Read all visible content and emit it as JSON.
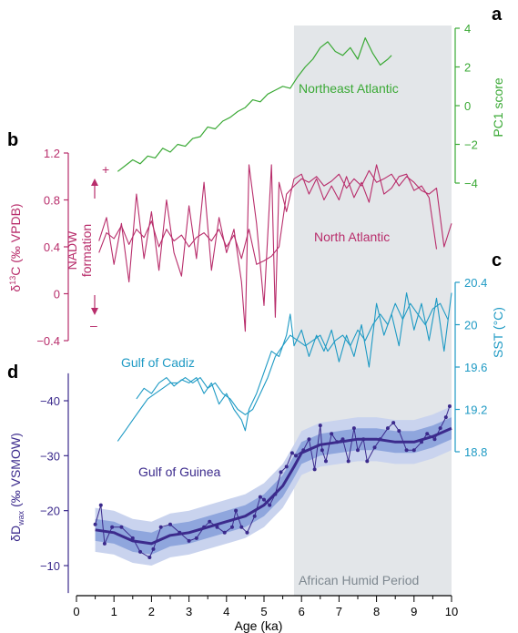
{
  "chart_data": [
    {
      "type": "line",
      "panel_label": "a",
      "series_label": "Northeast Atlantic",
      "ylabel": "PC1 score",
      "ylim": [
        -4,
        4
      ],
      "y_ticks": [
        -4,
        -2,
        0,
        2,
        4
      ],
      "color": "#3aa935",
      "x": [
        1.1,
        1.3,
        1.5,
        1.7,
        1.9,
        2.1,
        2.3,
        2.5,
        2.7,
        2.9,
        3.1,
        3.3,
        3.5,
        3.7,
        3.9,
        4.1,
        4.3,
        4.5,
        4.7,
        4.9,
        5.1,
        5.3,
        5.5,
        5.7,
        5.9,
        6.1,
        6.3,
        6.5,
        6.7,
        6.9,
        7.1,
        7.3,
        7.5,
        7.7,
        7.9,
        8.1,
        8.3,
        8.4
      ],
      "y": [
        -3.4,
        -3.1,
        -2.8,
        -3.0,
        -2.6,
        -2.7,
        -2.2,
        -2.4,
        -2.0,
        -2.1,
        -1.7,
        -1.6,
        -1.1,
        -1.2,
        -0.8,
        -0.6,
        -0.3,
        -0.1,
        0.3,
        0.2,
        0.6,
        0.8,
        1.0,
        0.9,
        1.5,
        2.0,
        2.4,
        3.0,
        3.3,
        2.8,
        2.6,
        3.0,
        2.4,
        3.5,
        2.7,
        2.1,
        2.4,
        2.6
      ]
    },
    {
      "type": "line",
      "panel_label": "b",
      "series_label": "North Atlantic",
      "ylabel": "δ13C (‰ VPDB)",
      "ylim": [
        -0.4,
        1.2
      ],
      "y_ticks": [
        -0.4,
        0,
        0.4,
        0.8,
        1.2
      ],
      "annotation": "NADW formation",
      "arrow_up": "+",
      "arrow_down": "–",
      "color": "#b82d6b",
      "series": [
        {
          "x": [
            0.6,
            0.8,
            1.0,
            1.2,
            1.4,
            1.6,
            1.8,
            2.0,
            2.2,
            2.4,
            2.6,
            2.8,
            3.0,
            3.2,
            3.4,
            3.6,
            3.8,
            4.0,
            4.2,
            4.4,
            4.6,
            4.8,
            5.0,
            5.2,
            5.4,
            5.6,
            5.8,
            6.0,
            6.2,
            6.4,
            6.6,
            6.8,
            7.0,
            7.2,
            7.4,
            7.6,
            7.8,
            8.0,
            8.2,
            8.4,
            8.6,
            8.8,
            9.0,
            9.2,
            9.4,
            9.6,
            9.8,
            10.0
          ],
          "y": [
            0.35,
            0.52,
            0.47,
            0.58,
            0.42,
            0.55,
            0.48,
            0.62,
            0.4,
            0.55,
            0.45,
            0.5,
            0.4,
            0.48,
            0.52,
            0.45,
            0.55,
            0.4,
            0.5,
            0.3,
            0.55,
            0.25,
            0.28,
            0.32,
            0.4,
            0.85,
            0.92,
            0.98,
            0.95,
            1.0,
            0.92,
            0.96,
            1.02,
            0.9,
            0.98,
            0.92,
            1.05,
            0.95,
            0.98,
            1.02,
            0.92,
            1.0,
            0.95,
            0.88,
            0.85,
            0.9,
            0.4,
            0.6
          ]
        },
        {
          "x": [
            0.6,
            0.8,
            1.0,
            1.2,
            1.4,
            1.6,
            1.8,
            2.0,
            2.2,
            2.4,
            2.6,
            2.8,
            3.0,
            3.2,
            3.4,
            3.6,
            3.8,
            4.0,
            4.2,
            4.4,
            4.5,
            4.6,
            4.8,
            5.0,
            5.2,
            5.3,
            5.4,
            5.6,
            5.8,
            6.0,
            6.2,
            6.4,
            6.6,
            6.8,
            7.0,
            7.2,
            7.4,
            7.6,
            7.8,
            8.0,
            8.2,
            8.4,
            8.6,
            8.8,
            9.0,
            9.2,
            9.4,
            9.6
          ],
          "y": [
            0.45,
            0.65,
            0.25,
            0.6,
            0.1,
            0.85,
            0.3,
            0.7,
            0.2,
            0.8,
            0.35,
            0.15,
            0.75,
            0.3,
            0.95,
            0.2,
            0.65,
            0.35,
            0.55,
            0.1,
            -0.32,
            1.1,
            0.6,
            -0.1,
            1.1,
            -0.2,
            0.95,
            0.7,
            0.98,
            1.02,
            0.85,
            0.98,
            0.8,
            0.92,
            0.8,
            1.0,
            0.82,
            0.95,
            0.78,
            1.1,
            0.85,
            0.9,
            1.0,
            1.02,
            0.88,
            0.92,
            0.82,
            0.38
          ]
        }
      ]
    },
    {
      "type": "line",
      "panel_label": "c",
      "series_label": "Gulf of Cadiz",
      "ylabel": "SST (°C)",
      "ylim": [
        18.8,
        20.4
      ],
      "y_ticks": [
        18.8,
        19.2,
        19.6,
        20,
        20.4
      ],
      "color": "#1e9ac4",
      "series": [
        {
          "x": [
            1.1,
            1.3,
            1.5,
            1.7,
            1.9,
            2.1,
            2.3,
            2.5,
            2.7,
            2.9,
            3.1,
            3.3,
            3.5,
            3.7,
            3.9,
            4.1,
            4.3,
            4.5,
            4.7,
            4.9,
            5.1,
            5.3,
            5.5,
            5.7,
            5.9,
            6.1,
            6.3,
            6.5,
            6.7,
            6.9,
            7.1,
            7.3,
            7.5,
            7.7,
            7.9,
            8.1,
            8.3,
            8.5,
            8.7,
            8.9,
            9.1,
            9.3,
            9.5,
            9.7,
            9.9
          ],
          "y": [
            18.9,
            19.0,
            19.1,
            19.2,
            19.3,
            19.35,
            19.4,
            19.45,
            19.45,
            19.5,
            19.45,
            19.5,
            19.4,
            19.45,
            19.35,
            19.3,
            19.2,
            19.15,
            19.2,
            19.35,
            19.5,
            19.7,
            19.8,
            19.9,
            19.85,
            19.8,
            19.85,
            19.9,
            19.75,
            19.85,
            19.9,
            19.8,
            19.95,
            19.85,
            20.0,
            20.1,
            20.0,
            20.2,
            20.05,
            20.2,
            20.1,
            20.0,
            20.15,
            20.2,
            20.05
          ]
        },
        {
          "x": [
            1.6,
            1.8,
            2.0,
            2.2,
            2.4,
            2.6,
            2.8,
            3.0,
            3.2,
            3.4,
            3.6,
            3.8,
            4.0,
            4.2,
            4.4,
            4.5,
            4.6,
            4.8,
            5.0,
            5.2,
            5.4,
            5.6,
            5.7,
            5.8,
            6.0,
            6.2,
            6.4,
            6.6,
            6.8,
            7.0,
            7.2,
            7.4,
            7.6,
            7.8,
            8.0,
            8.2,
            8.4,
            8.6,
            8.8,
            9.0,
            9.2,
            9.4,
            9.6,
            9.8,
            10.0
          ],
          "y": [
            19.3,
            19.4,
            19.35,
            19.45,
            19.5,
            19.42,
            19.48,
            19.45,
            19.5,
            19.35,
            19.45,
            19.25,
            19.35,
            19.2,
            19.1,
            19.0,
            19.2,
            19.35,
            19.55,
            19.75,
            19.7,
            19.9,
            20.1,
            19.8,
            19.95,
            19.7,
            19.9,
            19.75,
            19.95,
            19.65,
            19.9,
            19.7,
            20.0,
            19.6,
            20.2,
            19.9,
            20.1,
            19.8,
            20.3,
            19.95,
            20.2,
            19.85,
            20.25,
            19.75,
            20.3
          ]
        }
      ]
    },
    {
      "type": "line",
      "panel_label": "d",
      "series_label": "Gulf of Guinea",
      "ylabel": "δDwax (‰ VSMOW)",
      "ylim": [
        -45,
        -5
      ],
      "y_reversed": true,
      "y_ticks": [
        -40,
        -30,
        -20,
        -10
      ],
      "xlabel": "Age (ka)",
      "xlim": [
        0,
        10
      ],
      "x_ticks": [
        0,
        1,
        2,
        3,
        4,
        5,
        6,
        7,
        8,
        9,
        10
      ],
      "shaded_period_label": "African Humid Period",
      "shaded_period_range": [
        5.8,
        10
      ],
      "color": "#3b2a8c",
      "band_color_outer": "#c9d3ee",
      "band_color_inner": "#8fa6dd",
      "points": {
        "x": [
          0.5,
          0.65,
          0.75,
          0.95,
          1.2,
          1.5,
          1.7,
          1.95,
          2.05,
          2.25,
          2.5,
          2.75,
          3.0,
          3.2,
          3.4,
          3.55,
          3.75,
          3.95,
          4.15,
          4.25,
          4.4,
          4.55,
          4.75,
          4.9,
          5.0,
          5.15,
          5.3,
          5.45,
          5.6,
          5.75,
          5.85,
          6.05,
          6.2,
          6.35,
          6.5,
          6.55,
          6.65,
          6.8,
          6.95,
          7.1,
          7.25,
          7.4,
          7.5,
          7.65,
          7.75,
          7.95,
          8.1,
          8.3,
          8.45,
          8.6,
          8.8,
          9.0,
          9.2,
          9.35,
          9.55,
          9.7,
          9.85,
          9.95
        ],
        "y": [
          -17.5,
          -21,
          -14,
          -17,
          -17,
          -15,
          -12.5,
          -11.5,
          -13,
          -17,
          -17.5,
          -16,
          -14.5,
          -15,
          -17,
          -18,
          -17,
          -16,
          -17,
          -20,
          -17,
          -16,
          -19,
          -22.5,
          -22,
          -21,
          -23,
          -27,
          -28,
          -30.5,
          -30,
          -31,
          -33,
          -27.5,
          -35.5,
          -31,
          -29,
          -34,
          -32.5,
          -33,
          -29,
          -35,
          -31,
          -33,
          -29,
          -31.5,
          -33,
          -35,
          -36,
          -34.5,
          -31,
          -31,
          -32.5,
          -34,
          -33,
          -35,
          -37,
          -39
        ]
      },
      "trend": {
        "x": [
          0.5,
          1.0,
          1.5,
          2.0,
          2.5,
          3.0,
          3.5,
          4.0,
          4.5,
          5.0,
          5.5,
          5.8,
          6.0,
          6.5,
          7.0,
          7.5,
          8.0,
          8.5,
          9.0,
          9.5,
          10.0
        ],
        "y": [
          -16.5,
          -16,
          -14.5,
          -14,
          -15.5,
          -16,
          -17,
          -18,
          -19,
          -21,
          -24.5,
          -28,
          -30.5,
          -32,
          -32.5,
          -33,
          -33,
          -32.5,
          -32.5,
          -33.5,
          -35
        ]
      },
      "band_inner_half_width": 2.0,
      "band_outer_half_width": 4.0
    }
  ]
}
